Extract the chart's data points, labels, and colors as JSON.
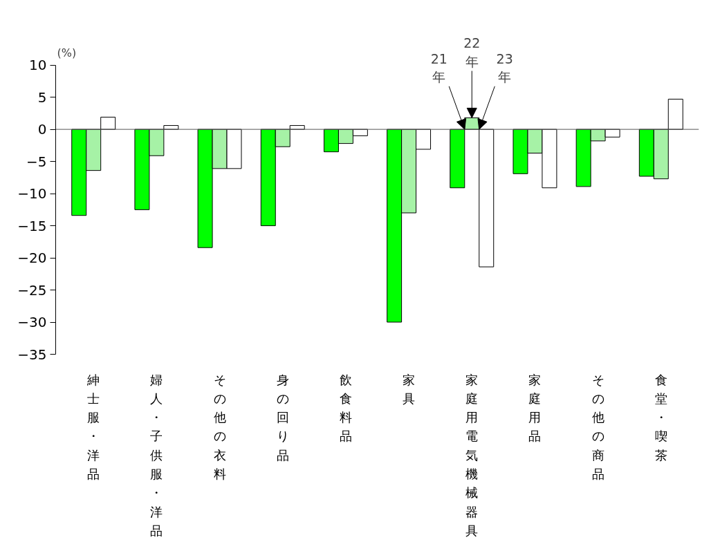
{
  "chart_data": {
    "type": "bar",
    "ylabel": "(%)",
    "categories": [
      "紳士服・洋品",
      "婦人・子供服・洋品",
      "その他の衣料",
      "身の回り品",
      "飲食料品",
      "家具",
      "家庭用電気機械器具",
      "家庭用品",
      "その他の商品",
      "食堂・喫茶"
    ],
    "series": [
      {
        "name": "21年",
        "color": "#00ff00",
        "values": [
          -13.4,
          -12.5,
          -18.4,
          -15.0,
          -3.5,
          -30.0,
          -9.1,
          -6.9,
          -8.9,
          -7.3
        ]
      },
      {
        "name": "22年",
        "color": "#a6f2a6",
        "values": [
          -6.4,
          -4.1,
          -6.1,
          -2.7,
          -2.2,
          -13.0,
          1.8,
          -3.7,
          -1.8,
          -7.7
        ]
      },
      {
        "name": "23年",
        "color": "#ffffff",
        "values": [
          1.9,
          0.6,
          -6.1,
          0.6,
          -1.0,
          -3.1,
          -21.4,
          -9.1,
          -1.2,
          4.7
        ]
      }
    ],
    "ylim": [
      -35,
      10
    ],
    "yticks": [
      10,
      5,
      0,
      -5,
      -10,
      -15,
      -20,
      -25,
      -30,
      -35
    ],
    "ref_lines": [
      {
        "axis": "y",
        "value": 0
      }
    ],
    "grid": false
  }
}
